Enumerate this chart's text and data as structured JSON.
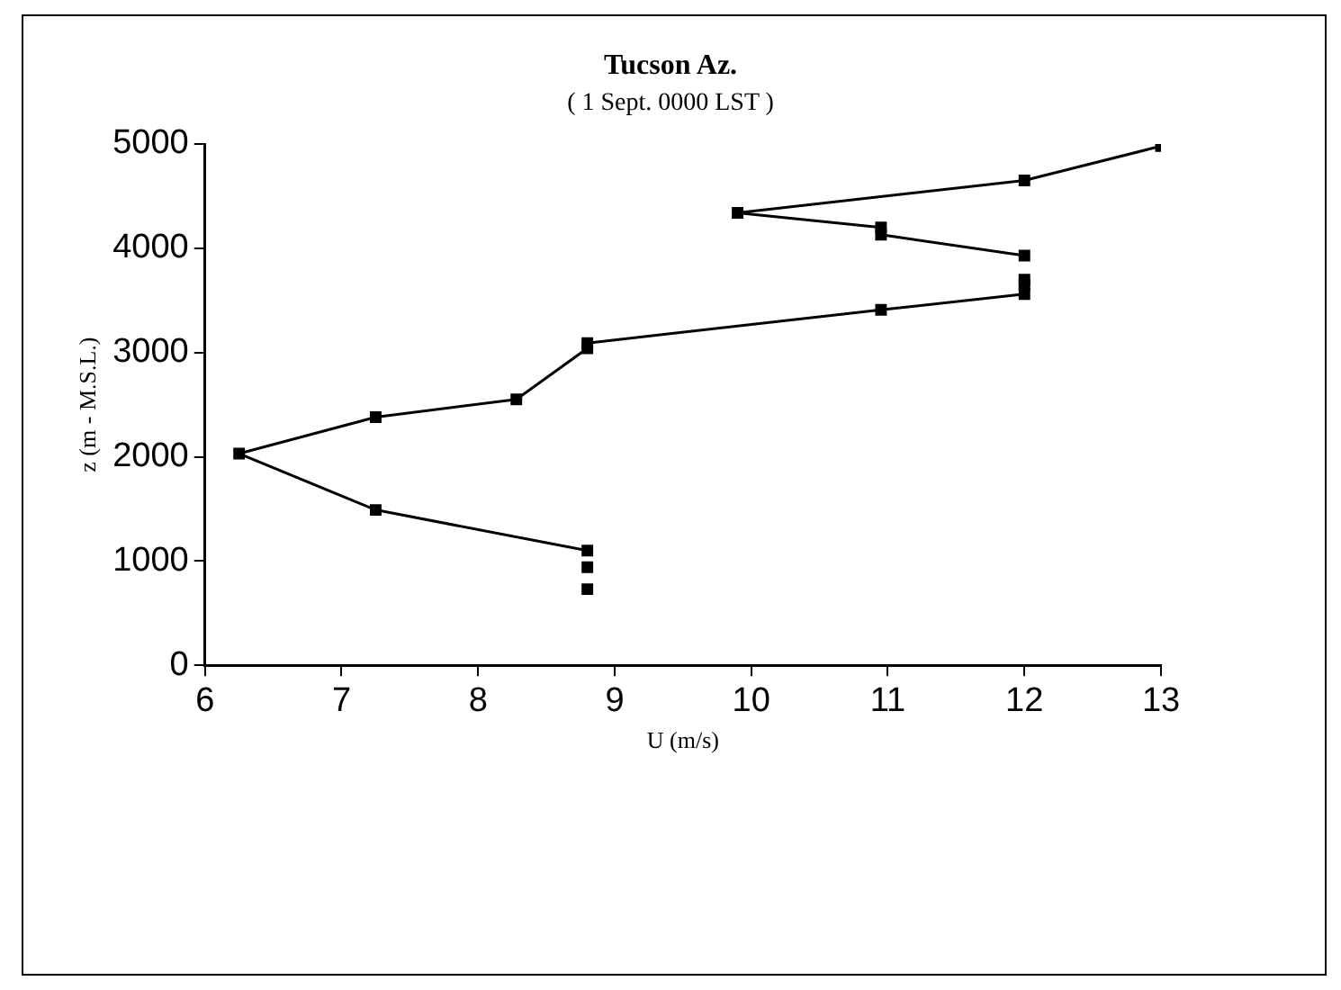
{
  "chart_data": {
    "type": "line",
    "title": "Tucson Az.",
    "subtitle": "( 1 Sept. 0000 LST )",
    "xlabel": "U (m/s)",
    "ylabel": "z (m - M.S.L.)",
    "series": [
      {
        "type": "scatter",
        "color": "#000000",
        "x": [
          8.8,
          8.8,
          12,
          12
        ],
        "values": [
          730,
          940,
          3650,
          3700
        ]
      },
      {
        "type": "line",
        "color": "#000000",
        "x": [
          8.8,
          7.25,
          6.25,
          7.25,
          8.28,
          8.8,
          8.8,
          10.95,
          12
        ],
        "values": [
          1100,
          1490,
          2030,
          2380,
          2550,
          3040,
          3090,
          3410,
          3560
        ]
      },
      {
        "type": "line",
        "color": "#000000",
        "x": [
          12,
          10.95,
          10.95,
          9.9,
          12,
          13
        ],
        "values": [
          3930,
          4130,
          4200,
          4340,
          4650,
          4980
        ]
      }
    ],
    "xlim": [
      6,
      13
    ],
    "xticks": [
      6,
      7,
      8,
      9,
      10,
      11,
      12,
      13
    ],
    "ylim": [
      0,
      5000
    ],
    "yticks": [
      0,
      1000,
      2000,
      3000,
      4000,
      5000
    ],
    "grid": false,
    "legend": false,
    "marker": "square"
  }
}
